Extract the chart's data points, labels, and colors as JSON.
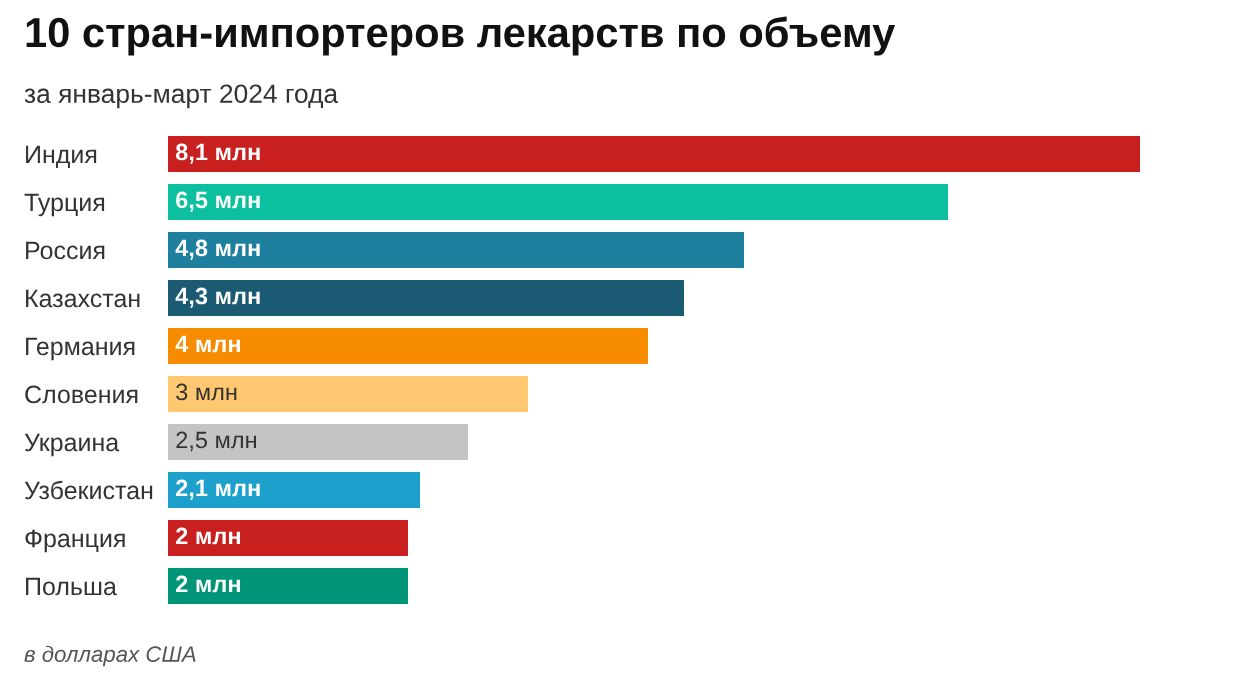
{
  "chart_data": {
    "type": "bar",
    "orientation": "horizontal",
    "title": "10 стран-импортеров лекарств по объему",
    "subtitle": "за январь-март 2024 года",
    "categories": [
      "Индия",
      "Турция",
      "Россия",
      "Казахстан",
      "Германия",
      "Словения",
      "Украина",
      "Узбекистан",
      "Франция",
      "Польша"
    ],
    "values": [
      8.1,
      6.5,
      4.8,
      4.3,
      4,
      3,
      2.5,
      2.1,
      2,
      2
    ],
    "value_labels": [
      "8,1 млн",
      "6,5 млн",
      "4,8 млн",
      "4,3 млн",
      "4 млн",
      "3 млн",
      "2,5 млн",
      "2,1 млн",
      "2 млн",
      "2 млн"
    ],
    "colors": [
      "#c8201f",
      "#0bbf9f",
      "#1f7f9f",
      "#1a5a73",
      "#f78c00",
      "#ffc870",
      "#c4c4c4",
      "#1ea0cc",
      "#c8201f",
      "#009577"
    ],
    "annotations": [
      "в долларах США"
    ],
    "grid": false,
    "legend": false
  }
}
